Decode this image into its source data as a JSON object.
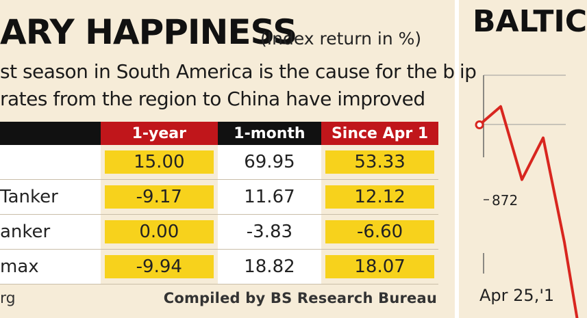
{
  "header": {
    "title": "ARY HAPPINESS",
    "unit_note": "(Index return in %)",
    "subtitle_line1": "st season in South America is the cause for the blip",
    "subtitle_line2": "rates from the region to China have improved"
  },
  "table": {
    "columns": [
      "",
      "1-year",
      "1-month",
      "Since Apr 1"
    ],
    "rows": [
      {
        "name": "",
        "values": [
          "15.00",
          "69.95",
          "53.33"
        ]
      },
      {
        "name": "Tanker",
        "values": [
          "-9.17",
          "11.67",
          "12.12"
        ]
      },
      {
        "name": "anker",
        "values": [
          "0.00",
          "-3.83",
          "-6.60"
        ]
      },
      {
        "name": "max",
        "values": [
          "-9.94",
          "18.82",
          "18.07"
        ]
      }
    ]
  },
  "footer": {
    "source": "rg",
    "compiled_by": "Compiled by BS Research Bureau"
  },
  "colors": {
    "highlight": "#f7d21c",
    "header_red": "#c0161b",
    "header_black": "#111111",
    "line": "#d8261f"
  },
  "chart_data": {
    "type": "line",
    "title": "BALTIC",
    "x_labels": [
      "Apr 25,'1"
    ],
    "annotations": [
      "872"
    ],
    "y_gridlines": 2,
    "series": [
      {
        "values": [
          985,
          1020,
          880,
          960,
          760
        ]
      }
    ],
    "ylim": [
      700,
      1080
    ]
  }
}
